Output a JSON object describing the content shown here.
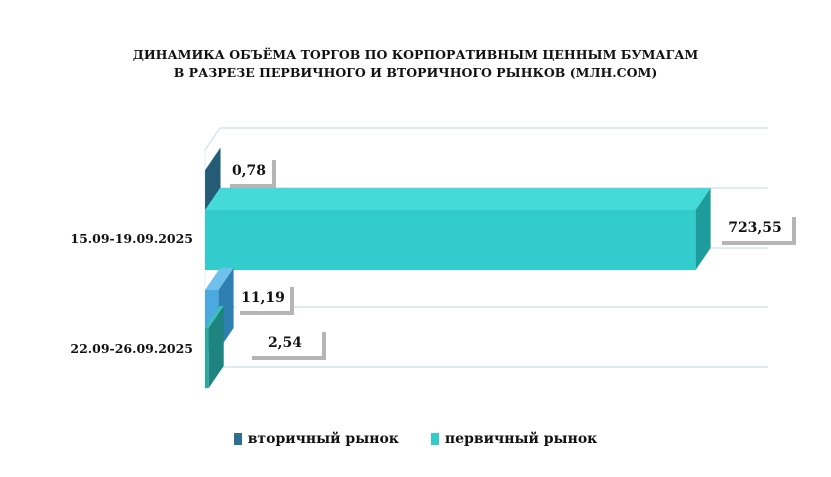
{
  "chart_data": {
    "type": "bar",
    "orientation": "horizontal",
    "title_lines": [
      "ДИНАМИКА ОБЪЁМА ТОРГОВ ПО КОРПОРАТИВНЫМ ЦЕННЫМ БУМАГАМ",
      "В РАЗРЕЗЕ ПЕРВИЧНОГО И ВТОРИЧНОГО РЫНКОВ  (МЛН.СОМ)"
    ],
    "categories": [
      "15.09-19.09.2025",
      "22.09-26.09.2025"
    ],
    "series": [
      {
        "name": "вторичный рынок",
        "values": [
          0.78,
          11.19
        ],
        "labels": [
          "0,78",
          "11,19"
        ],
        "color": "#2E6E8E"
      },
      {
        "name": "первичный рынок",
        "values": [
          723.55,
          2.54
        ],
        "labels": [
          "723,55",
          "2,54"
        ],
        "color": "#33CCCC"
      }
    ],
    "xlim": [
      0,
      730
    ],
    "grid": true,
    "legend_position": "bottom"
  }
}
